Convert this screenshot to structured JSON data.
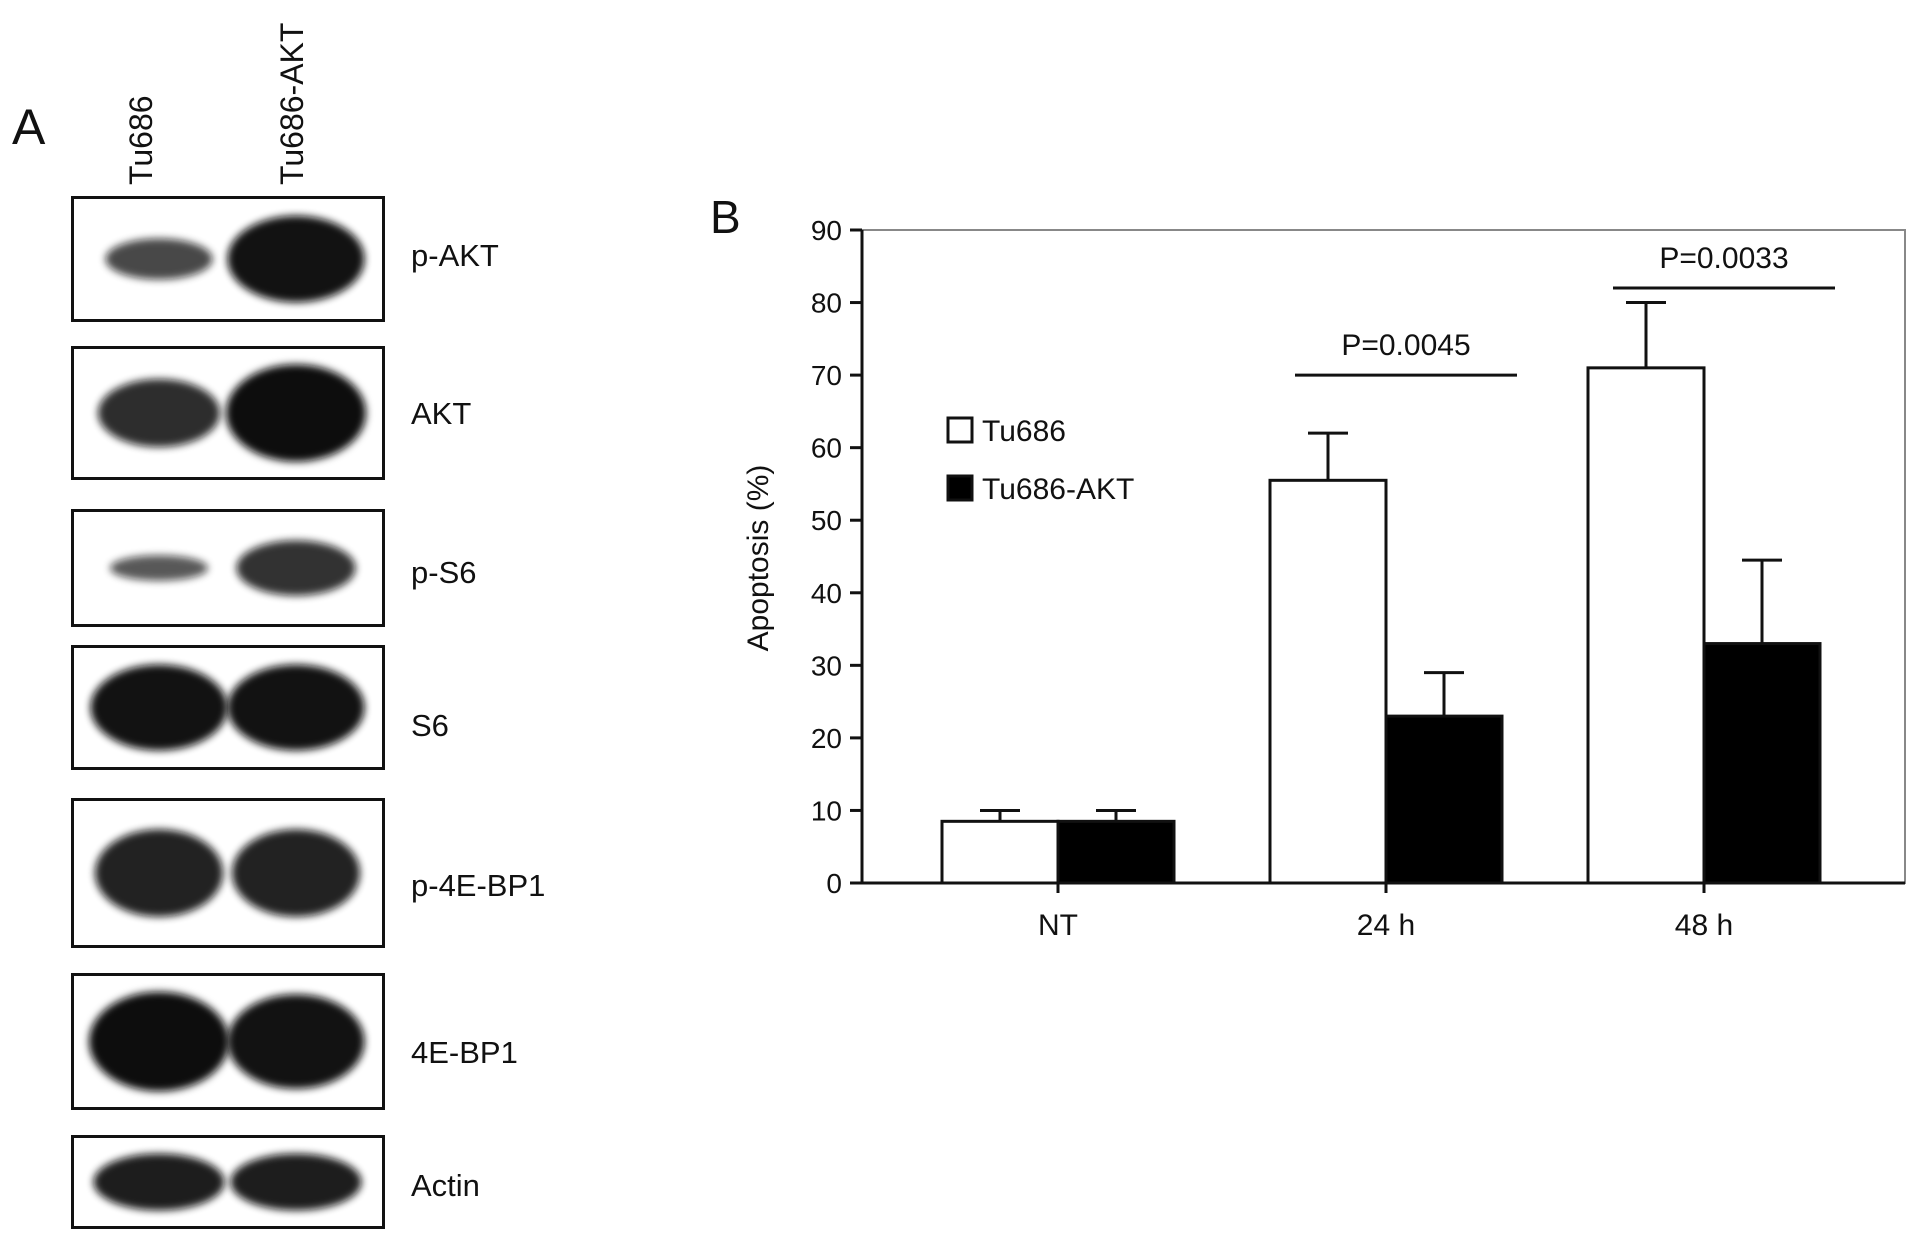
{
  "panel_a": {
    "letter": "A",
    "lanes": [
      "Tu686",
      "Tu686-AKT"
    ],
    "blots": [
      {
        "label": "p-AKT",
        "band1": 0.45,
        "band2": 0.95
      },
      {
        "label": "AKT",
        "band1": 0.7,
        "band2": 1.0
      },
      {
        "label": "p-S6",
        "band1": 0.3,
        "band2": 0.65
      },
      {
        "label": "S6",
        "band1": 0.95,
        "band2": 0.95
      },
      {
        "label": "p-4E-BP1",
        "band1": 0.8,
        "band2": 0.8
      },
      {
        "label": "4E-BP1",
        "band1": 1.0,
        "band2": 0.95
      },
      {
        "label": "Actin",
        "band1": 0.85,
        "band2": 0.85
      }
    ]
  },
  "panel_b": {
    "letter": "B",
    "chart_data": {
      "type": "bar",
      "categories": [
        "NT",
        "24 h",
        "48 h"
      ],
      "series": [
        {
          "name": "Tu686",
          "values": [
            8.5,
            55.5,
            71
          ],
          "errors": [
            1.5,
            6.5,
            9
          ],
          "color": "#ffffff"
        },
        {
          "name": "Tu686-AKT",
          "values": [
            8.5,
            23,
            33
          ],
          "errors": [
            1.5,
            6,
            11.5
          ],
          "color": "#000000"
        }
      ],
      "xlabel": "",
      "ylabel": "Apoptosis (%)",
      "ylim": [
        0,
        90
      ],
      "yticks": [
        0,
        10,
        20,
        30,
        40,
        50,
        60,
        70,
        80,
        90
      ],
      "legend_position": "center-left",
      "annotations": [
        {
          "category": "24 h",
          "text": "P=0.0045",
          "bar_y": 70
        },
        {
          "category": "48 h",
          "text": "P=0.0033",
          "bar_y": 82
        }
      ]
    }
  }
}
